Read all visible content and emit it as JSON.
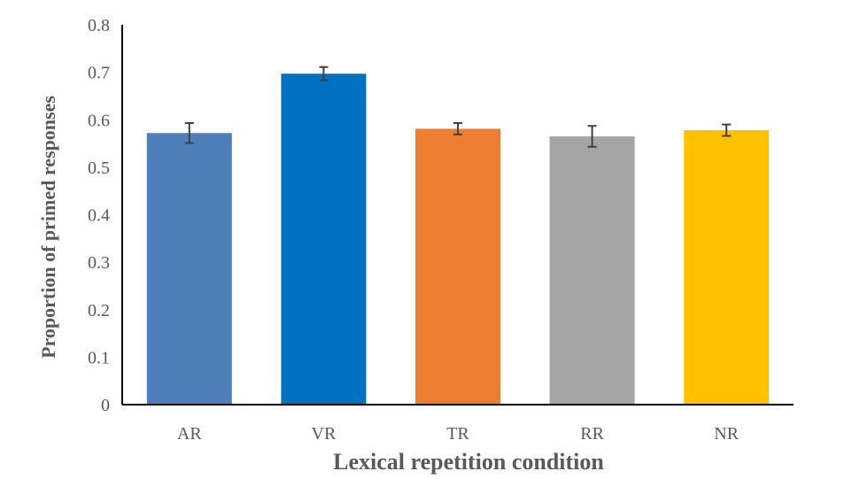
{
  "chart_data": {
    "type": "bar",
    "title": "",
    "xlabel": "Lexical repetition condition",
    "ylabel": "Proportion of primed responses",
    "ylim": [
      0,
      0.8
    ],
    "yticks": [
      "0",
      "0.1",
      "0.2",
      "0.3",
      "0.4",
      "0.5",
      "0.6",
      "0.7",
      "0.8"
    ],
    "categories": [
      "AR",
      "VR",
      "TR",
      "RR",
      "NR"
    ],
    "values": [
      0.572,
      0.697,
      0.581,
      0.565,
      0.578
    ],
    "errors": [
      0.021,
      0.014,
      0.012,
      0.022,
      0.012
    ],
    "colors": [
      "#4E7FBB",
      "#0070C0",
      "#ED7D31",
      "#A5A5A5",
      "#FFC000"
    ],
    "grid": false,
    "legend": "none"
  }
}
